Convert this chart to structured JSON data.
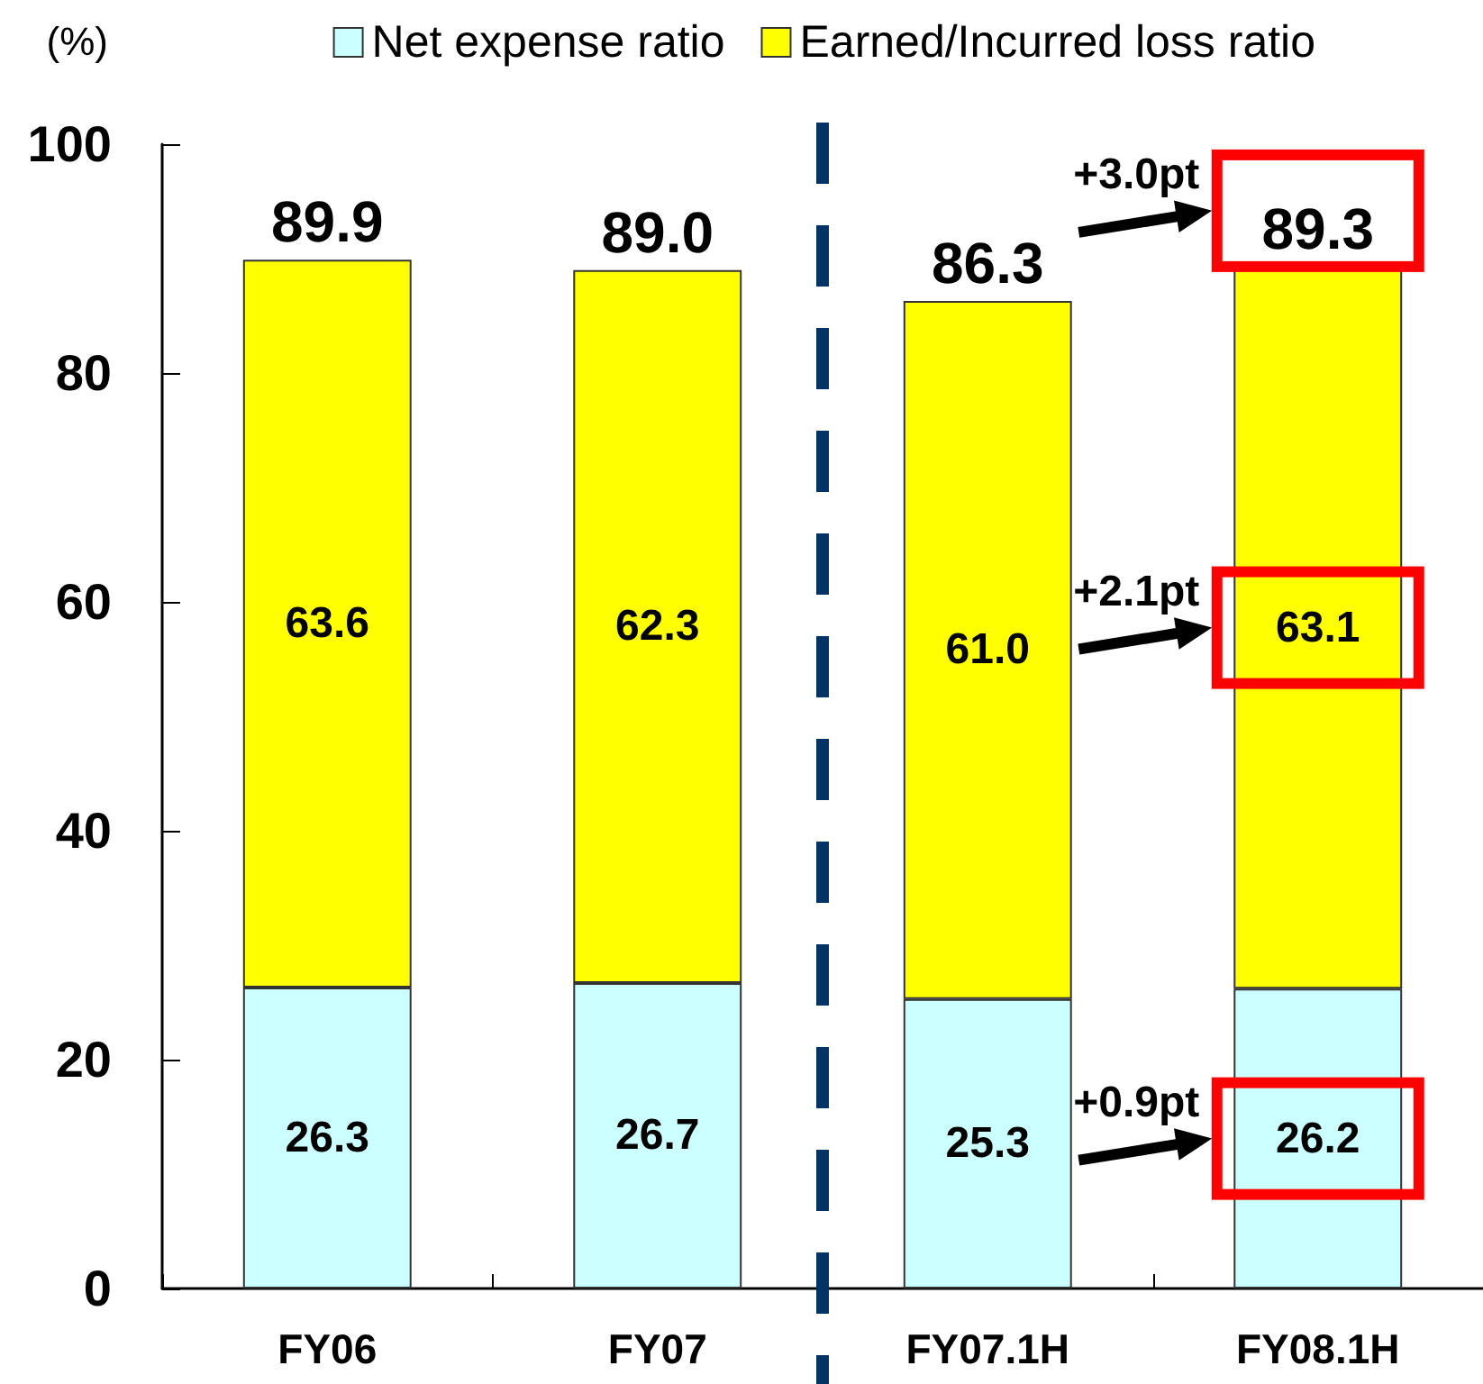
{
  "chart_data": {
    "type": "bar",
    "stacked": true,
    "categories": [
      "FY06",
      "FY07",
      "FY07.1H",
      "FY08.1H"
    ],
    "series": [
      {
        "name": "Net expense ratio",
        "color": "#ccffff",
        "values": [
          26.3,
          26.7,
          25.3,
          26.2
        ],
        "value_labels": [
          "26.3",
          "26.7",
          "25.3",
          "26.2"
        ]
      },
      {
        "name": "Earned/Incurred loss ratio",
        "color": "#ffff00",
        "values": [
          63.6,
          62.3,
          61.0,
          63.1
        ],
        "value_labels": [
          "63.6",
          "62.3",
          "61.0",
          "63.1"
        ]
      }
    ],
    "totals": [
      "89.9",
      "89.0",
      "86.3",
      "89.3"
    ],
    "ylabel": "(%)",
    "ylim": [
      0,
      100
    ],
    "yticks": [
      0,
      20,
      40,
      60,
      80,
      100
    ],
    "grid": false,
    "legend": "top",
    "annotations": [
      "+3.0pt",
      "+2.1pt",
      "+0.9pt"
    ]
  }
}
